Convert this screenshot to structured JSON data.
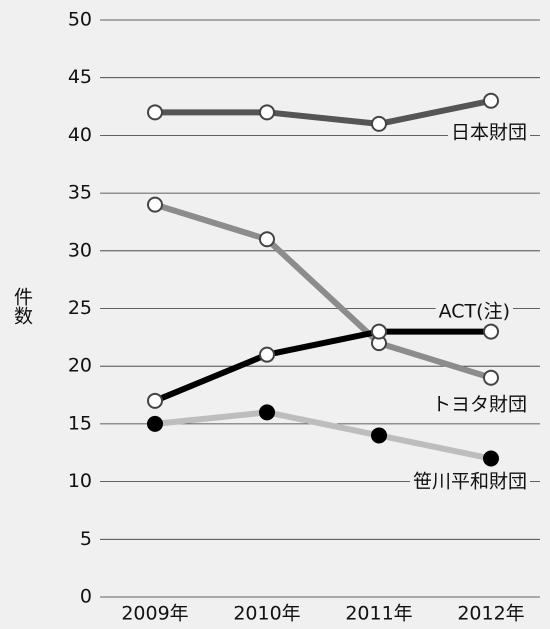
{
  "chart_data": {
    "type": "line",
    "y_label": "件数",
    "categories": [
      "2009年",
      "2010年",
      "2011年",
      "2012年"
    ],
    "series": [
      {
        "name": "日本財団",
        "color": "#555555",
        "marker_fill": "#ffffff",
        "values": [
          42,
          42,
          41,
          43
        ]
      },
      {
        "name": "トヨタ財団",
        "color": "#8c8c8c",
        "marker_fill": "#ffffff",
        "values": [
          34,
          31,
          22,
          19
        ]
      },
      {
        "name": "ACT(注)",
        "color": "#000000",
        "marker_fill": "#ffffff",
        "values": [
          17,
          21,
          23,
          23
        ]
      },
      {
        "name": "笹川平和財団",
        "color": "#bdbdbd",
        "marker_fill": "#000000",
        "values": [
          15,
          16,
          14,
          12
        ]
      }
    ],
    "ylim": [
      0,
      50
    ],
    "yticks": [
      0,
      5,
      10,
      15,
      20,
      25,
      30,
      35,
      40,
      45,
      50
    ],
    "grid": true
  }
}
